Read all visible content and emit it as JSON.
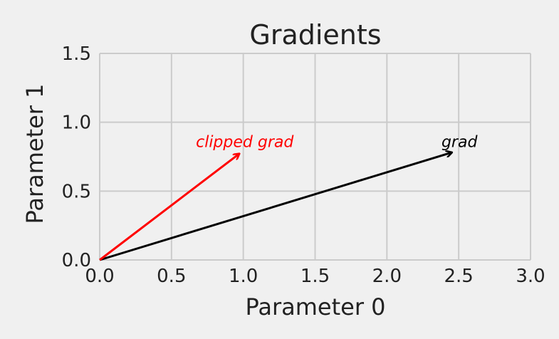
{
  "chart_data": {
    "type": "vector",
    "title": "Gradients",
    "xlabel": "Parameter 0",
    "ylabel": "Parameter 1",
    "xlim": [
      0,
      3
    ],
    "ylim": [
      0,
      1.5
    ],
    "x_ticks": [
      0,
      0.5,
      1,
      1.5,
      2,
      2.5,
      3
    ],
    "x_tick_labels": [
      "0.0",
      "0.5",
      "1.0",
      "1.5",
      "2.0",
      "2.5",
      "3.0"
    ],
    "y_ticks": [
      0,
      0.5,
      1,
      1.5
    ],
    "y_tick_labels": [
      "0.0",
      "0.5",
      "1.0",
      "1.5"
    ],
    "grid": true,
    "arrows": [
      {
        "label": "grad",
        "start": [
          0,
          0
        ],
        "end": [
          2.45,
          0.78
        ],
        "color": "#000000",
        "label_pos": [
          2.38,
          0.82
        ]
      },
      {
        "label": "clipped grad",
        "start": [
          0,
          0
        ],
        "end": [
          0.97,
          0.77
        ],
        "color": "#ff0000",
        "label_pos": [
          0.67,
          0.82
        ]
      }
    ],
    "colors": {
      "background": "#f0f0f0",
      "grid": "#cbcbcb",
      "text": "#222222"
    }
  }
}
